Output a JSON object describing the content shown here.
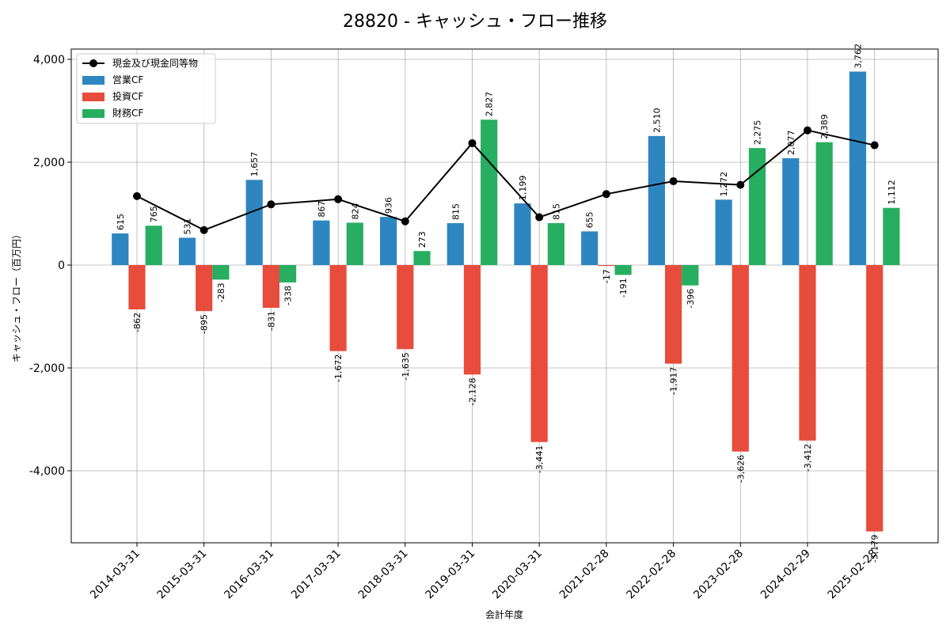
{
  "chart_data": {
    "type": "bar",
    "title": "28820 - キャッシュ・フロー推移",
    "xlabel": "会計年度",
    "ylabel": "キャッシュ・フロー（百万円）",
    "categories": [
      "2014-03-31",
      "2015-03-31",
      "2016-03-31",
      "2017-03-31",
      "2018-03-31",
      "2019-03-31",
      "2020-03-31",
      "2021-02-28",
      "2022-02-28",
      "2023-02-28",
      "2024-02-29",
      "2025-02-28"
    ],
    "ylim": [
      -5400,
      4200
    ],
    "yticks": [
      -4000,
      -2000,
      0,
      2000,
      4000
    ],
    "ytick_labels": [
      "-4,000",
      "-2,000",
      "0",
      "2,000",
      "4,000"
    ],
    "grid": true,
    "legend_position": "top-left",
    "series": [
      {
        "name": "営業CF",
        "kind": "bar",
        "color": "#2e86c1",
        "values": [
          615,
          531,
          1657,
          867,
          936,
          815,
          1199,
          655,
          2510,
          1272,
          2077,
          3762
        ],
        "labels": [
          "615",
          "531",
          "1,657",
          "867",
          "936",
          "815",
          "1,199",
          "655",
          "2,510",
          "1,272",
          "2,077",
          "3,762"
        ]
      },
      {
        "name": "投資CF",
        "kind": "bar",
        "color": "#e74c3c",
        "values": [
          -862,
          -895,
          -831,
          -1672,
          -1635,
          -2128,
          -3441,
          -17,
          -1917,
          -3626,
          -3412,
          -5179
        ],
        "labels": [
          "-862",
          "-895",
          "-831",
          "-1,672",
          "-1,635",
          "-2,128",
          "-3,441",
          "-17",
          "-1,917",
          "-3,626",
          "-3,412",
          "-5,179"
        ]
      },
      {
        "name": "財務CF",
        "kind": "bar",
        "color": "#27ae60",
        "values": [
          765,
          -283,
          -338,
          824,
          273,
          2827,
          815,
          -191,
          -396,
          2275,
          2389,
          1112
        ],
        "labels": [
          "765",
          "-283",
          "-338",
          "824",
          "273",
          "2,827",
          "815",
          "-191",
          "-396",
          "2,275",
          "2,389",
          "1,112"
        ]
      },
      {
        "name": "現金及び現金同等物",
        "kind": "line",
        "color": "#000000",
        "values": [
          1340,
          680,
          1180,
          1280,
          850,
          2370,
          930,
          1380,
          1630,
          1560,
          2620,
          2330
        ]
      }
    ]
  }
}
